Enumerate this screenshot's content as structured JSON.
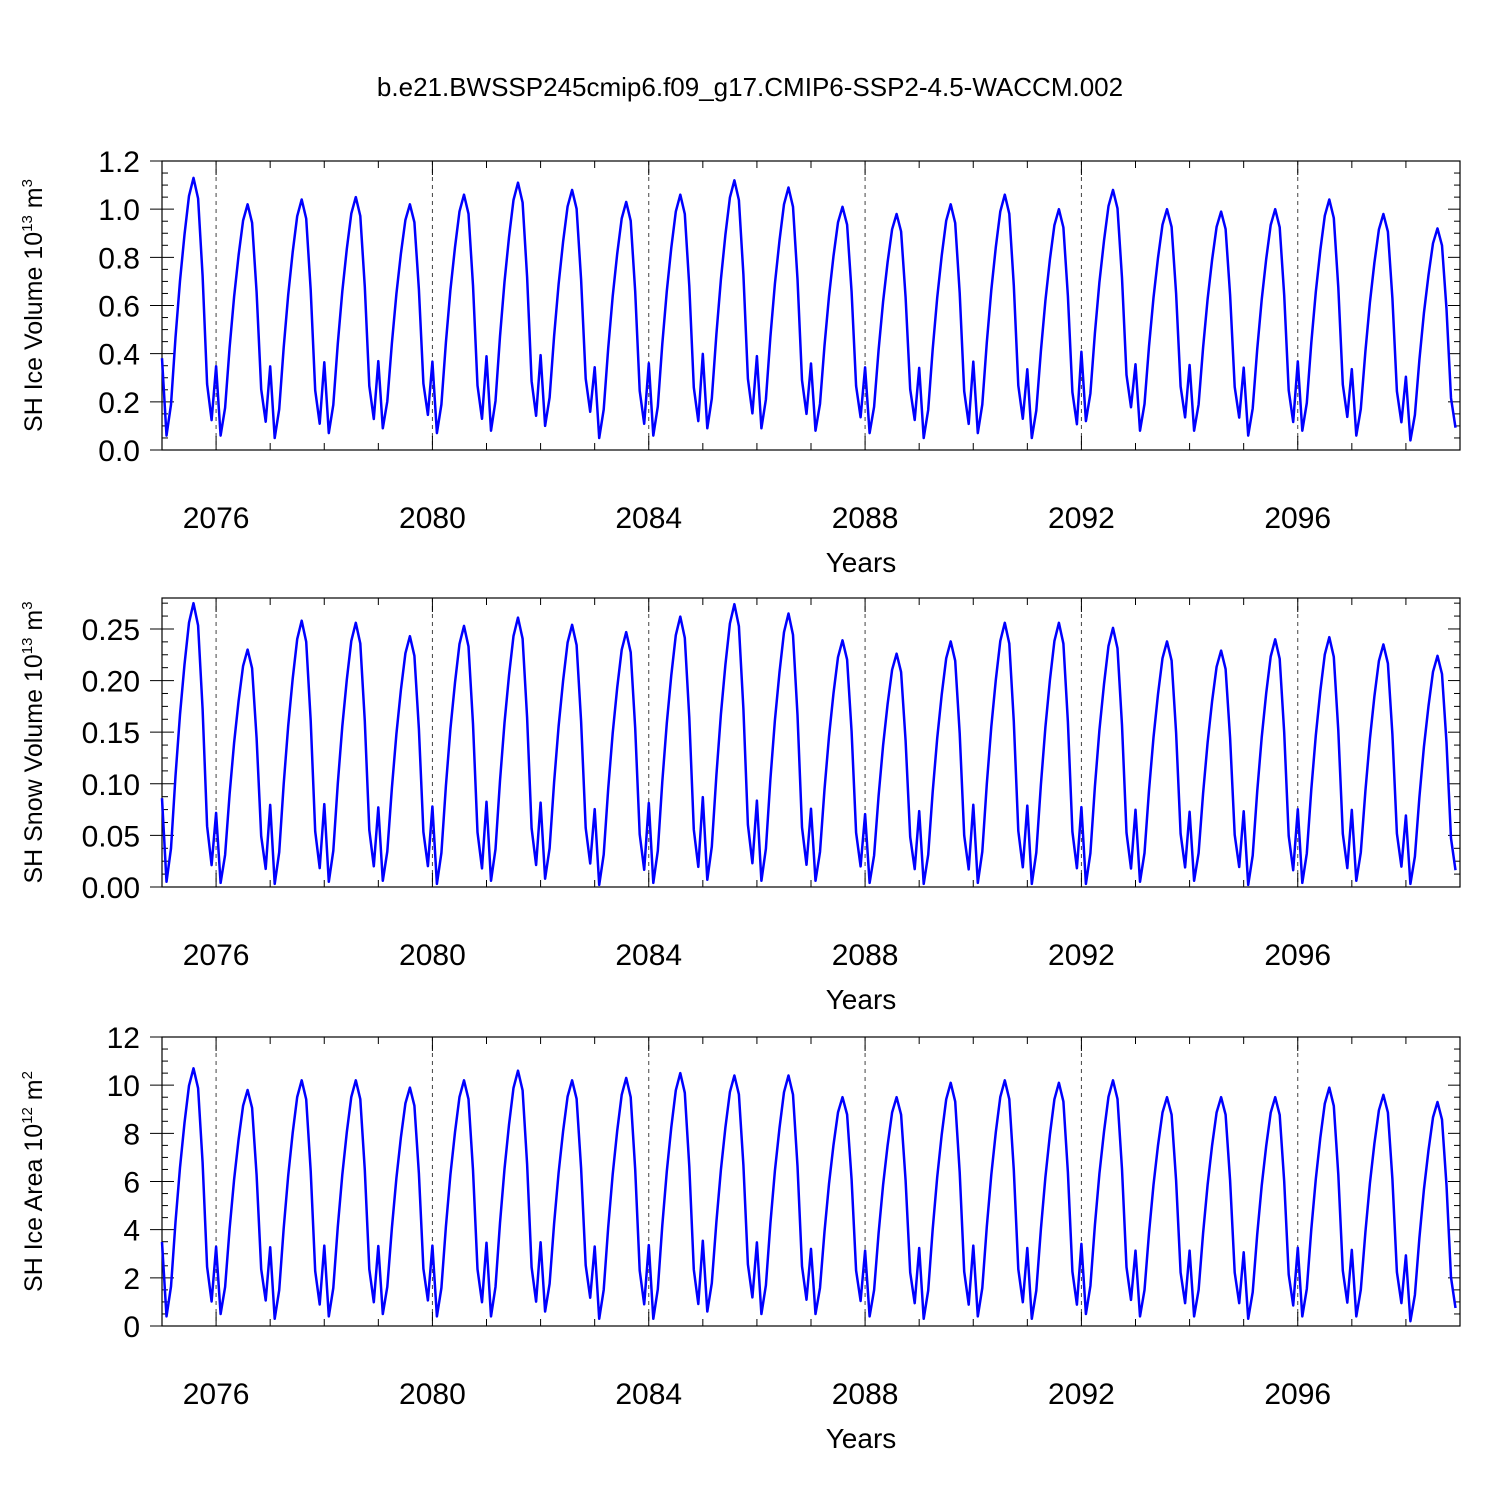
{
  "title": "b.e21.BWSSP245cmip6.f09_g17.CMIP6-SSP2-4.5-WACCM.002",
  "chart_data": [
    {
      "type": "line",
      "ylabel": {
        "base": "SH Ice Volume 10",
        "exp": "13",
        "unit": " m",
        "unit_exp": "3"
      },
      "xlabel": "Years",
      "xlim": [
        2075,
        2099
      ],
      "ylim": [
        0,
        1.2
      ],
      "xticks": [
        2076,
        2080,
        2084,
        2088,
        2092,
        2096
      ],
      "xtick_labels": [
        "2076",
        "2080",
        "2084",
        "2088",
        "2092",
        "2096"
      ],
      "yticks": [
        0,
        0.2,
        0.4,
        0.6,
        0.8,
        1.0,
        1.2
      ],
      "ytick_labels": [
        "0.0",
        "0.2",
        "0.4",
        "0.6",
        "0.8",
        "1.0",
        "1.2"
      ],
      "series": [
        {
          "color": "#0000ff",
          "x_start": 2075.0,
          "annual_max": [
            1.13,
            1.02,
            1.04,
            1.05,
            1.02,
            1.06,
            1.11,
            1.08,
            1.03,
            1.06,
            1.12,
            1.09,
            1.01,
            0.98,
            1.02,
            1.06,
            1.0,
            1.08,
            1.0,
            0.99,
            1.0,
            1.04,
            0.98,
            0.92
          ],
          "annual_min": [
            0.06,
            0.06,
            0.05,
            0.07,
            0.09,
            0.07,
            0.08,
            0.1,
            0.05,
            0.06,
            0.09,
            0.09,
            0.08,
            0.07,
            0.05,
            0.07,
            0.05,
            0.12,
            0.08,
            0.08,
            0.06,
            0.08,
            0.06,
            0.04
          ]
        }
      ]
    },
    {
      "type": "line",
      "ylabel": {
        "base": "SH Snow Volume 10",
        "exp": "13",
        "unit": " m",
        "unit_exp": "3"
      },
      "xlabel": "Years",
      "xlim": [
        2075,
        2099
      ],
      "ylim": [
        0,
        0.28
      ],
      "xticks": [
        2076,
        2080,
        2084,
        2088,
        2092,
        2096
      ],
      "xtick_labels": [
        "2076",
        "2080",
        "2084",
        "2088",
        "2092",
        "2096"
      ],
      "yticks": [
        0,
        0.05,
        0.1,
        0.15,
        0.2,
        0.25
      ],
      "ytick_labels": [
        "0.00",
        "0.05",
        "0.10",
        "0.15",
        "0.20",
        "0.25"
      ],
      "series": [
        {
          "color": "#0000ff",
          "x_start": 2075.0,
          "annual_max": [
            0.275,
            0.23,
            0.258,
            0.256,
            0.243,
            0.253,
            0.261,
            0.254,
            0.247,
            0.262,
            0.274,
            0.265,
            0.239,
            0.226,
            0.238,
            0.256,
            0.256,
            0.251,
            0.238,
            0.229,
            0.24,
            0.242,
            0.235,
            0.224
          ],
          "annual_min": [
            0.005,
            0.004,
            0.003,
            0.005,
            0.006,
            0.003,
            0.006,
            0.008,
            0.002,
            0.004,
            0.007,
            0.006,
            0.006,
            0.004,
            0.003,
            0.004,
            0.003,
            0.003,
            0.005,
            0.006,
            0.002,
            0.004,
            0.006,
            0.003
          ]
        }
      ]
    },
    {
      "type": "line",
      "ylabel": {
        "base": "SH Ice Area 10",
        "exp": "12",
        "unit": " m",
        "unit_exp": "2"
      },
      "xlabel": "Years",
      "xlim": [
        2075,
        2099
      ],
      "ylim": [
        0,
        12
      ],
      "xticks": [
        2076,
        2080,
        2084,
        2088,
        2092,
        2096
      ],
      "xtick_labels": [
        "2076",
        "2080",
        "2084",
        "2088",
        "2092",
        "2096"
      ],
      "yticks": [
        0,
        2,
        4,
        6,
        8,
        10,
        12
      ],
      "ytick_labels": [
        "0",
        "2",
        "4",
        "6",
        "8",
        "10",
        "12"
      ],
      "series": [
        {
          "color": "#0000ff",
          "x_start": 2075.0,
          "annual_max": [
            10.7,
            9.8,
            10.2,
            10.2,
            9.9,
            10.2,
            10.6,
            10.2,
            10.3,
            10.5,
            10.4,
            10.4,
            9.5,
            9.5,
            10.1,
            10.2,
            10.1,
            10.2,
            9.5,
            9.5,
            9.5,
            9.9,
            9.6,
            9.3
          ],
          "annual_min": [
            0.4,
            0.5,
            0.3,
            0.4,
            0.5,
            0.4,
            0.4,
            0.6,
            0.3,
            0.3,
            0.6,
            0.5,
            0.5,
            0.4,
            0.3,
            0.4,
            0.3,
            0.5,
            0.4,
            0.4,
            0.3,
            0.4,
            0.4,
            0.2
          ]
        }
      ]
    }
  ]
}
